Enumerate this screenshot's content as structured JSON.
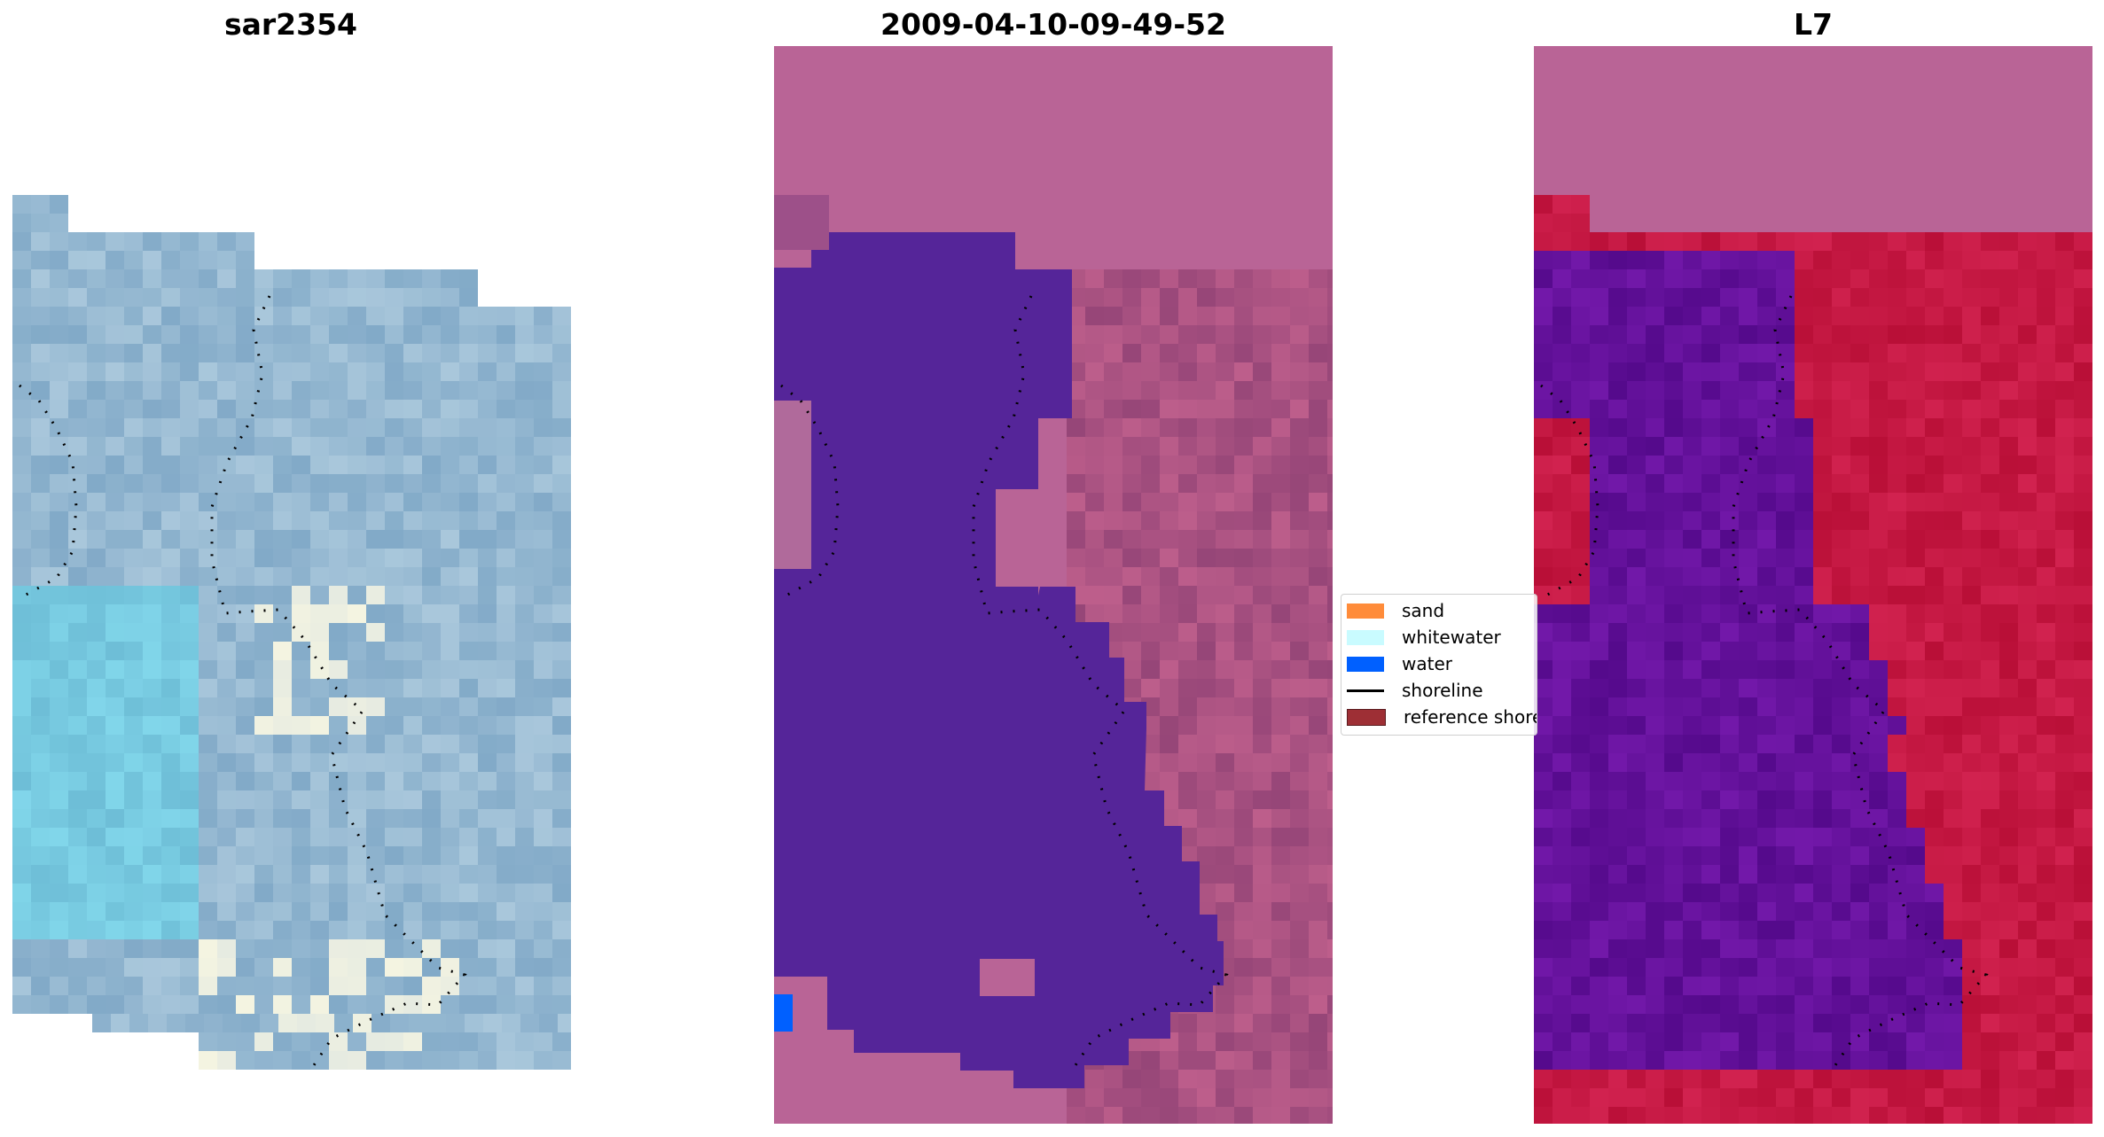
{
  "panels": [
    {
      "title": "sar2354",
      "kind": "rgb"
    },
    {
      "title": "2009-04-10-09-49-52",
      "kind": "classified"
    },
    {
      "title": "L7",
      "kind": "index"
    }
  ],
  "legend": {
    "items": [
      {
        "label": "sand",
        "type": "patch",
        "color": "#ff8c3a"
      },
      {
        "label": "whitewater",
        "type": "patch",
        "color": "#c9fbff"
      },
      {
        "label": "water",
        "type": "patch",
        "color": "#0060ff"
      },
      {
        "label": "shoreline",
        "type": "line",
        "color": "#000000"
      },
      {
        "label": "reference shoreline",
        "type": "patch",
        "color": "#9e2f35"
      }
    ]
  },
  "colors": {
    "classified_water": "#552599",
    "classified_land": "#b96496",
    "index_water": "#6a109e",
    "index_land": "#c00b40",
    "rgb_base": "#8ab4cc"
  }
}
